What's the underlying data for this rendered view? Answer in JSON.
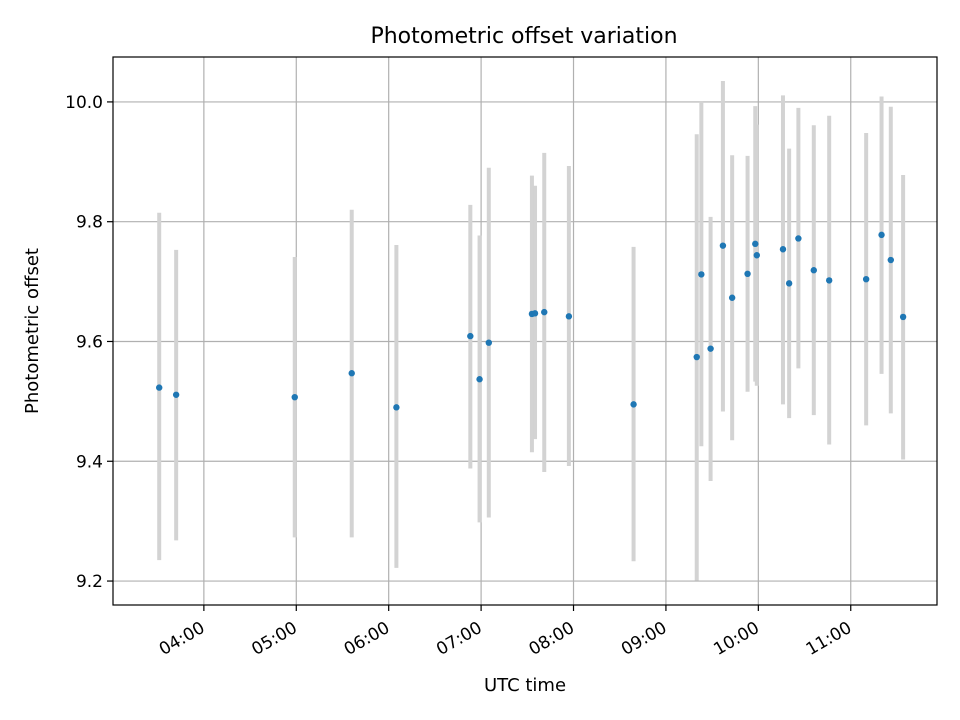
{
  "chart_data": {
    "type": "scatter",
    "title": "Photometric offset variation",
    "xlabel": "UTC time",
    "ylabel": "Photometric offset",
    "x_axis": "time",
    "xlim": [
      "03:01",
      "11:56"
    ],
    "ylim": [
      9.16,
      10.075
    ],
    "x_ticks": [
      "04:00",
      "05:00",
      "06:00",
      "07:00",
      "08:00",
      "09:00",
      "10:00",
      "11:00"
    ],
    "y_ticks": [
      9.2,
      9.4,
      9.6,
      9.8,
      10.0
    ],
    "y_tick_labels": [
      "9.2",
      "9.4",
      "9.6",
      "9.8",
      "10.0"
    ],
    "grid": true,
    "point_color": "#1f77b4",
    "errorbar_color": "#d3d3d3",
    "series": [
      {
        "points": [
          {
            "x": "03:31",
            "y": 9.523,
            "yerr_low": 9.235,
            "yerr_high": 9.815
          },
          {
            "x": "03:42",
            "y": 9.511,
            "yerr_low": 9.268,
            "yerr_high": 9.753
          },
          {
            "x": "04:59",
            "y": 9.507,
            "yerr_low": 9.273,
            "yerr_high": 9.741
          },
          {
            "x": "05:36",
            "y": 9.547,
            "yerr_low": 9.273,
            "yerr_high": 9.82
          },
          {
            "x": "06:05",
            "y": 9.49,
            "yerr_low": 9.222,
            "yerr_high": 9.761
          },
          {
            "x": "06:53",
            "y": 9.609,
            "yerr_low": 9.388,
            "yerr_high": 9.828
          },
          {
            "x": "06:59",
            "y": 9.537,
            "yerr_low": 9.298,
            "yerr_high": 9.777
          },
          {
            "x": "07:05",
            "y": 9.598,
            "yerr_low": 9.306,
            "yerr_high": 9.89
          },
          {
            "x": "07:33",
            "y": 9.646,
            "yerr_low": 9.415,
            "yerr_high": 9.877
          },
          {
            "x": "07:35",
            "y": 9.647,
            "yerr_low": 9.437,
            "yerr_high": 9.86
          },
          {
            "x": "07:41",
            "y": 9.649,
            "yerr_low": 9.382,
            "yerr_high": 9.915
          },
          {
            "x": "07:57",
            "y": 9.642,
            "yerr_low": 9.392,
            "yerr_high": 9.893
          },
          {
            "x": "08:39",
            "y": 9.495,
            "yerr_low": 9.233,
            "yerr_high": 9.758
          },
          {
            "x": "09:20",
            "y": 9.574,
            "yerr_low": 9.201,
            "yerr_high": 9.946
          },
          {
            "x": "09:23",
            "y": 9.712,
            "yerr_low": 9.425,
            "yerr_high": 10.0
          },
          {
            "x": "09:29",
            "y": 9.588,
            "yerr_low": 9.367,
            "yerr_high": 9.808
          },
          {
            "x": "09:37",
            "y": 9.76,
            "yerr_low": 9.483,
            "yerr_high": 10.035
          },
          {
            "x": "09:43",
            "y": 9.673,
            "yerr_low": 9.435,
            "yerr_high": 9.911
          },
          {
            "x": "09:53",
            "y": 9.713,
            "yerr_low": 9.516,
            "yerr_high": 9.91
          },
          {
            "x": "09:58",
            "y": 9.763,
            "yerr_low": 9.533,
            "yerr_high": 9.993
          },
          {
            "x": "09:59",
            "y": 9.744,
            "yerr_low": 9.526,
            "yerr_high": 9.962
          },
          {
            "x": "10:16",
            "y": 9.754,
            "yerr_low": 9.495,
            "yerr_high": 10.011
          },
          {
            "x": "10:20",
            "y": 9.697,
            "yerr_low": 9.472,
            "yerr_high": 9.922
          },
          {
            "x": "10:26",
            "y": 9.772,
            "yerr_low": 9.555,
            "yerr_high": 9.99
          },
          {
            "x": "10:36",
            "y": 9.719,
            "yerr_low": 9.477,
            "yerr_high": 9.961
          },
          {
            "x": "10:46",
            "y": 9.702,
            "yerr_low": 9.428,
            "yerr_high": 9.977
          },
          {
            "x": "11:10",
            "y": 9.704,
            "yerr_low": 9.46,
            "yerr_high": 9.948
          },
          {
            "x": "11:20",
            "y": 9.778,
            "yerr_low": 9.546,
            "yerr_high": 10.009
          },
          {
            "x": "11:26",
            "y": 9.736,
            "yerr_low": 9.48,
            "yerr_high": 9.992
          },
          {
            "x": "11:34",
            "y": 9.641,
            "yerr_low": 9.403,
            "yerr_high": 9.878
          }
        ]
      }
    ]
  }
}
